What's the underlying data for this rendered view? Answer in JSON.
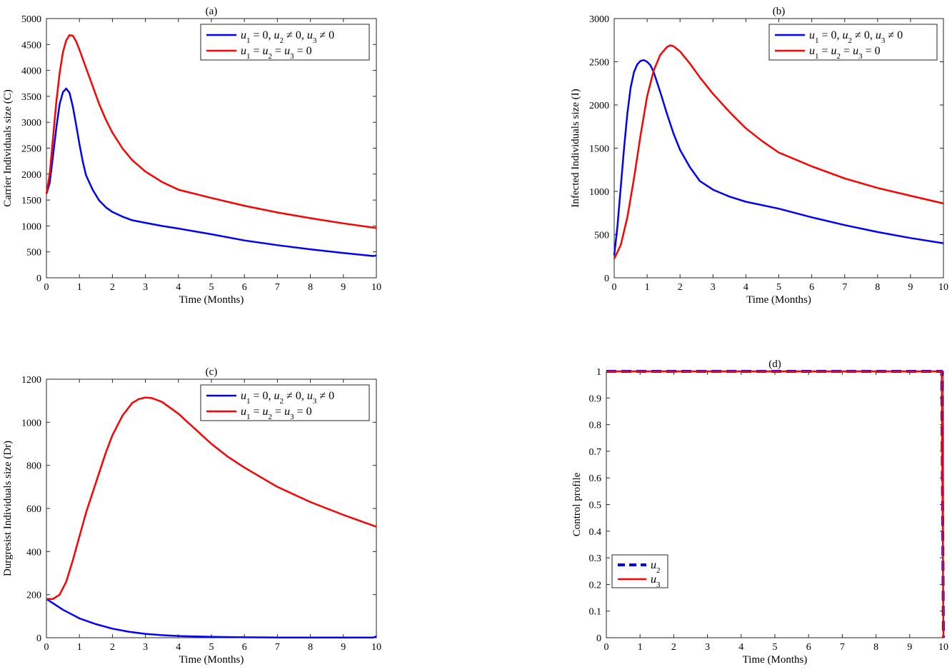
{
  "chart_data": [
    {
      "type": "line",
      "title": "(a)",
      "xlabel": "Time (Months)",
      "ylabel": "Carrier Individuals size (C)",
      "xlim": [
        0,
        10
      ],
      "ylim": [
        0,
        5000
      ],
      "xticks": [
        0,
        1,
        2,
        3,
        4,
        5,
        6,
        7,
        8,
        9,
        10
      ],
      "yticks": [
        0,
        500,
        1000,
        1500,
        2000,
        2500,
        3000,
        3500,
        4000,
        4500,
        5000
      ],
      "legend_position": "top-right",
      "series": [
        {
          "name": "u1 = 0, u2 ≠ 0, u3 ≠ 0",
          "color": "#0000ff",
          "style": "solid",
          "x": [
            0,
            0.1,
            0.2,
            0.3,
            0.4,
            0.5,
            0.6,
            0.7,
            0.8,
            0.9,
            1,
            1.1,
            1.2,
            1.4,
            1.6,
            1.8,
            2,
            2.3,
            2.6,
            3,
            3.5,
            4,
            5,
            6,
            7,
            8,
            9,
            9.9,
            10
          ],
          "y": [
            1620,
            1830,
            2350,
            2900,
            3350,
            3580,
            3650,
            3570,
            3300,
            2950,
            2580,
            2250,
            1980,
            1700,
            1490,
            1360,
            1270,
            1180,
            1110,
            1060,
            1000,
            950,
            840,
            720,
            630,
            550,
            480,
            420,
            430
          ]
        },
        {
          "name": "u1 = u2 = u3 = 0",
          "color": "#ff0000",
          "style": "solid",
          "x": [
            0,
            0.1,
            0.2,
            0.3,
            0.4,
            0.5,
            0.6,
            0.7,
            0.8,
            0.9,
            1,
            1.2,
            1.4,
            1.6,
            1.8,
            2,
            2.3,
            2.6,
            3,
            3.5,
            4,
            5,
            6,
            7,
            8,
            9,
            10
          ],
          "y": [
            1620,
            2000,
            2700,
            3400,
            3950,
            4350,
            4580,
            4680,
            4670,
            4560,
            4400,
            4050,
            3700,
            3350,
            3050,
            2800,
            2500,
            2270,
            2050,
            1850,
            1700,
            1540,
            1390,
            1260,
            1150,
            1050,
            960
          ]
        }
      ]
    },
    {
      "type": "line",
      "title": "(b)",
      "xlabel": "Time (Months)",
      "ylabel": "Infected Individuals size (I)",
      "xlim": [
        0,
        10
      ],
      "ylim": [
        0,
        3000
      ],
      "xticks": [
        0,
        1,
        2,
        3,
        4,
        5,
        6,
        7,
        8,
        9,
        10
      ],
      "yticks": [
        0,
        500,
        1000,
        1500,
        2000,
        2500,
        3000
      ],
      "legend_position": "top-right",
      "series": [
        {
          "name": "u1 = 0, u2 ≠ 0, u3 ≠ 0",
          "color": "#0000ff",
          "style": "solid",
          "x": [
            0,
            0.1,
            0.2,
            0.3,
            0.4,
            0.5,
            0.6,
            0.7,
            0.8,
            0.9,
            1,
            1.1,
            1.2,
            1.4,
            1.6,
            1.8,
            2,
            2.3,
            2.6,
            3,
            3.5,
            4,
            5,
            6,
            7,
            8,
            9,
            10
          ],
          "y": [
            260,
            600,
            1050,
            1500,
            1900,
            2200,
            2380,
            2470,
            2510,
            2520,
            2500,
            2460,
            2380,
            2150,
            1900,
            1670,
            1480,
            1280,
            1120,
            1020,
            940,
            880,
            800,
            700,
            610,
            530,
            460,
            400
          ]
        },
        {
          "name": "u1 = u2 = u3 = 0",
          "color": "#ff0000",
          "style": "solid",
          "x": [
            0,
            0.2,
            0.4,
            0.6,
            0.8,
            1,
            1.2,
            1.4,
            1.6,
            1.7,
            1.8,
            2,
            2.3,
            2.6,
            3,
            3.5,
            4,
            4.5,
            5,
            6,
            7,
            8,
            9,
            10
          ],
          "y": [
            220,
            380,
            700,
            1150,
            1650,
            2100,
            2400,
            2580,
            2670,
            2690,
            2680,
            2620,
            2480,
            2320,
            2130,
            1920,
            1730,
            1580,
            1450,
            1290,
            1150,
            1040,
            950,
            860
          ]
        }
      ]
    },
    {
      "type": "line",
      "title": "(c)",
      "xlabel": "Time (Months)",
      "ylabel": "Durgresist Individuals size (Dr)",
      "xlim": [
        0,
        10
      ],
      "ylim": [
        0,
        1200
      ],
      "xticks": [
        0,
        1,
        2,
        3,
        4,
        5,
        6,
        7,
        8,
        9,
        10
      ],
      "yticks": [
        0,
        200,
        400,
        600,
        800,
        1000,
        1200
      ],
      "legend_position": "top-right",
      "series": [
        {
          "name": "u1 = 0, u2 ≠ 0, u3 ≠ 0",
          "color": "#0000ff",
          "style": "solid",
          "x": [
            0,
            0.25,
            0.5,
            0.75,
            1,
            1.5,
            2,
            2.5,
            3,
            3.5,
            4,
            5,
            6,
            7,
            8,
            9,
            9.9,
            10
          ],
          "y": [
            180,
            155,
            130,
            110,
            90,
            63,
            42,
            28,
            18,
            12,
            8,
            4,
            2,
            1,
            1,
            1,
            1,
            6
          ]
        },
        {
          "name": "u1 = u2 = u3 = 0",
          "color": "#ff0000",
          "style": "solid",
          "x": [
            0,
            0.2,
            0.4,
            0.6,
            0.8,
            1,
            1.2,
            1.5,
            1.8,
            2,
            2.3,
            2.6,
            2.8,
            3,
            3.2,
            3.5,
            4,
            4.5,
            5,
            5.5,
            6,
            7,
            8,
            9,
            10
          ],
          "y": [
            180,
            180,
            200,
            260,
            360,
            470,
            580,
            720,
            860,
            940,
            1030,
            1090,
            1108,
            1115,
            1112,
            1095,
            1040,
            970,
            900,
            840,
            790,
            700,
            630,
            570,
            515
          ]
        }
      ]
    },
    {
      "type": "line",
      "title": "(d)",
      "xlabel": "Time (Months)",
      "ylabel": "Control profile",
      "xlim": [
        0,
        10
      ],
      "ylim": [
        0,
        1
      ],
      "xticks": [
        0,
        1,
        2,
        3,
        4,
        5,
        6,
        7,
        8,
        9,
        10
      ],
      "yticks": [
        0,
        0.1,
        0.2,
        0.3,
        0.4,
        0.5,
        0.6,
        0.7,
        0.8,
        0.9,
        1
      ],
      "legend_position": "bottom-left",
      "series": [
        {
          "name": "u2",
          "color": "#0000ff",
          "style": "dashed",
          "x": [
            0,
            9.9,
            9.95,
            10
          ],
          "y": [
            1,
            1,
            1,
            0
          ]
        },
        {
          "name": "u3",
          "color": "#ff0000",
          "style": "solid",
          "x": [
            0,
            9.9,
            9.95,
            10
          ],
          "y": [
            1,
            1,
            1,
            0
          ]
        }
      ]
    }
  ],
  "legends": {
    "a": {
      "entry1_parts": [
        "u1 = 0, u2 ≠ 0, u3 ≠ 0"
      ],
      "entry2_parts": [
        "u1 = u2 = u3 = 0"
      ]
    },
    "d": {
      "entry1": "u2",
      "entry2": "u3"
    }
  }
}
